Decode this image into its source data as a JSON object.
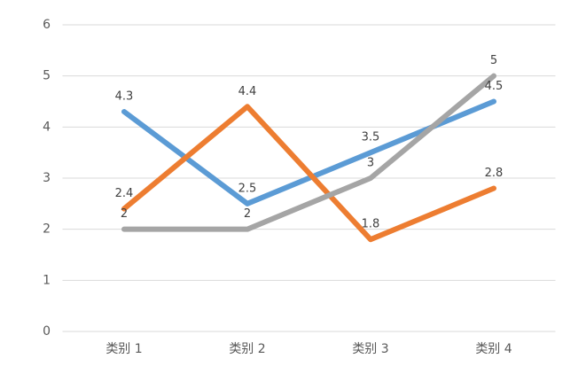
{
  "chart_data": {
    "type": "line",
    "categories": [
      "类别 1",
      "类别 2",
      "类别 3",
      "类别 4"
    ],
    "series": [
      {
        "color": "#5b9bd5",
        "values": [
          4.3,
          2.5,
          3.5,
          4.5
        ]
      },
      {
        "color": "#ed7d31",
        "values": [
          2.4,
          4.4,
          1.8,
          2.8
        ]
      },
      {
        "color": "#a5a5a5",
        "values": [
          2,
          2,
          3,
          5
        ]
      }
    ],
    "ylim": [
      0,
      6
    ],
    "yticks": [
      0,
      1,
      2,
      3,
      4,
      5,
      6
    ],
    "grid": true
  }
}
